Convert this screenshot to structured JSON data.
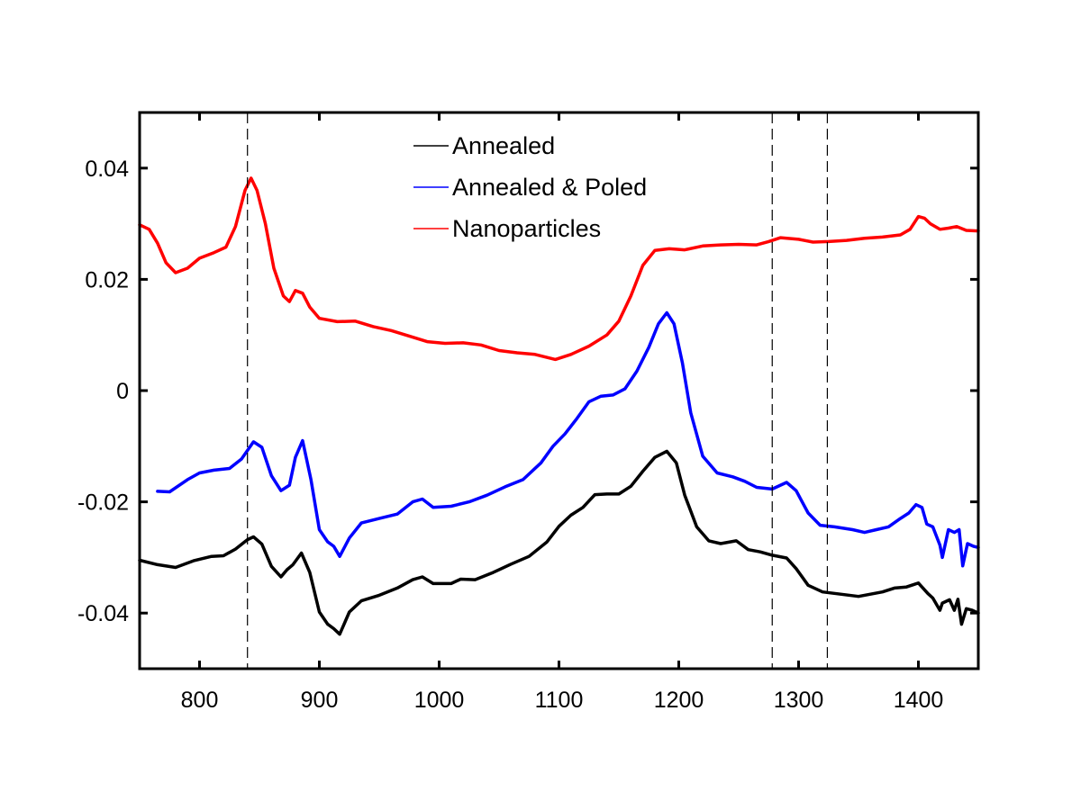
{
  "chart_data": {
    "type": "line",
    "title": "",
    "xlabel": "",
    "ylabel": "",
    "xlim": [
      750,
      1450
    ],
    "ylim": [
      -0.05,
      0.05
    ],
    "x_ticks": [
      800,
      900,
      1000,
      1100,
      1200,
      1300,
      1400
    ],
    "x_tick_labels": [
      "800",
      "900",
      "1000",
      "1100",
      "1200",
      "1300",
      "1400"
    ],
    "y_ticks": [
      0.04,
      0.02,
      0,
      -0.02,
      -0.04
    ],
    "y_tick_labels": [
      "0.04",
      "0.02",
      "0",
      "-0.02",
      "-0.04"
    ],
    "grid": false,
    "legend_position": "top-center",
    "vlines": [
      840,
      1278,
      1324
    ],
    "series": [
      {
        "name": "Annealed",
        "color": "#000000",
        "points": [
          [
            750,
            -0.0305
          ],
          [
            765,
            -0.0313
          ],
          [
            780,
            -0.0318
          ],
          [
            795,
            -0.0306
          ],
          [
            810,
            -0.0298
          ],
          [
            820,
            -0.0297
          ],
          [
            830,
            -0.0285
          ],
          [
            840,
            -0.0268
          ],
          [
            845,
            -0.0263
          ],
          [
            852,
            -0.0276
          ],
          [
            860,
            -0.0316
          ],
          [
            868,
            -0.0335
          ],
          [
            873,
            -0.0322
          ],
          [
            878,
            -0.0313
          ],
          [
            885,
            -0.0292
          ],
          [
            892,
            -0.0327
          ],
          [
            900,
            -0.0398
          ],
          [
            907,
            -0.042
          ],
          [
            912,
            -0.0428
          ],
          [
            917,
            -0.0438
          ],
          [
            925,
            -0.0398
          ],
          [
            935,
            -0.0378
          ],
          [
            950,
            -0.0368
          ],
          [
            965,
            -0.0355
          ],
          [
            978,
            -0.034
          ],
          [
            986,
            -0.0335
          ],
          [
            995,
            -0.0347
          ],
          [
            1010,
            -0.0347
          ],
          [
            1018,
            -0.0339
          ],
          [
            1030,
            -0.034
          ],
          [
            1045,
            -0.0327
          ],
          [
            1060,
            -0.0312
          ],
          [
            1075,
            -0.0298
          ],
          [
            1090,
            -0.0272
          ],
          [
            1100,
            -0.0244
          ],
          [
            1110,
            -0.0224
          ],
          [
            1120,
            -0.021
          ],
          [
            1130,
            -0.0187
          ],
          [
            1140,
            -0.0186
          ],
          [
            1150,
            -0.0186
          ],
          [
            1160,
            -0.0172
          ],
          [
            1170,
            -0.0145
          ],
          [
            1180,
            -0.012
          ],
          [
            1190,
            -0.0109
          ],
          [
            1198,
            -0.013
          ],
          [
            1205,
            -0.0188
          ],
          [
            1215,
            -0.0245
          ],
          [
            1225,
            -0.027
          ],
          [
            1235,
            -0.0275
          ],
          [
            1248,
            -0.027
          ],
          [
            1258,
            -0.0286
          ],
          [
            1268,
            -0.029
          ],
          [
            1278,
            -0.0296
          ],
          [
            1290,
            -0.0301
          ],
          [
            1298,
            -0.032
          ],
          [
            1308,
            -0.035
          ],
          [
            1320,
            -0.0362
          ],
          [
            1335,
            -0.0366
          ],
          [
            1350,
            -0.037
          ],
          [
            1360,
            -0.0366
          ],
          [
            1370,
            -0.0362
          ],
          [
            1380,
            -0.0355
          ],
          [
            1390,
            -0.0353
          ],
          [
            1400,
            -0.0346
          ],
          [
            1408,
            -0.0365
          ],
          [
            1412,
            -0.0373
          ],
          [
            1418,
            -0.0395
          ],
          [
            1420,
            -0.0382
          ],
          [
            1426,
            -0.0376
          ],
          [
            1430,
            -0.0395
          ],
          [
            1433,
            -0.0375
          ],
          [
            1436,
            -0.042
          ],
          [
            1440,
            -0.0392
          ],
          [
            1445,
            -0.0395
          ],
          [
            1450,
            -0.04
          ]
        ]
      },
      {
        "name": "Annealed & Poled",
        "color": "#0000ff",
        "points": [
          [
            765,
            -0.0181
          ],
          [
            775,
            -0.0182
          ],
          [
            790,
            -0.016
          ],
          [
            800,
            -0.0148
          ],
          [
            812,
            -0.0143
          ],
          [
            825,
            -0.014
          ],
          [
            835,
            -0.0123
          ],
          [
            845,
            -0.0092
          ],
          [
            852,
            -0.0102
          ],
          [
            860,
            -0.0153
          ],
          [
            868,
            -0.018
          ],
          [
            875,
            -0.017
          ],
          [
            880,
            -0.012
          ],
          [
            886,
            -0.009
          ],
          [
            893,
            -0.016
          ],
          [
            900,
            -0.025
          ],
          [
            907,
            -0.0272
          ],
          [
            912,
            -0.028
          ],
          [
            917,
            -0.0298
          ],
          [
            925,
            -0.0265
          ],
          [
            935,
            -0.0238
          ],
          [
            950,
            -0.023
          ],
          [
            965,
            -0.0222
          ],
          [
            978,
            -0.02
          ],
          [
            986,
            -0.0195
          ],
          [
            995,
            -0.021
          ],
          [
            1010,
            -0.0208
          ],
          [
            1025,
            -0.02
          ],
          [
            1040,
            -0.0188
          ],
          [
            1055,
            -0.0173
          ],
          [
            1070,
            -0.016
          ],
          [
            1085,
            -0.013
          ],
          [
            1095,
            -0.01
          ],
          [
            1105,
            -0.0078
          ],
          [
            1115,
            -0.005
          ],
          [
            1125,
            -0.002
          ],
          [
            1135,
            -0.001
          ],
          [
            1145,
            -0.0008
          ],
          [
            1155,
            0.0003
          ],
          [
            1165,
            0.0035
          ],
          [
            1175,
            0.0078
          ],
          [
            1183,
            0.012
          ],
          [
            1190,
            0.014
          ],
          [
            1196,
            0.012
          ],
          [
            1203,
            0.005
          ],
          [
            1210,
            -0.004
          ],
          [
            1220,
            -0.0118
          ],
          [
            1232,
            -0.0148
          ],
          [
            1245,
            -0.0155
          ],
          [
            1255,
            -0.0163
          ],
          [
            1265,
            -0.0174
          ],
          [
            1278,
            -0.0177
          ],
          [
            1290,
            -0.0165
          ],
          [
            1298,
            -0.018
          ],
          [
            1308,
            -0.022
          ],
          [
            1318,
            -0.0242
          ],
          [
            1330,
            -0.0245
          ],
          [
            1345,
            -0.025
          ],
          [
            1355,
            -0.0255
          ],
          [
            1365,
            -0.025
          ],
          [
            1375,
            -0.0245
          ],
          [
            1385,
            -0.023
          ],
          [
            1392,
            -0.022
          ],
          [
            1398,
            -0.0205
          ],
          [
            1403,
            -0.021
          ],
          [
            1407,
            -0.024
          ],
          [
            1412,
            -0.0245
          ],
          [
            1418,
            -0.0278
          ],
          [
            1420,
            -0.03
          ],
          [
            1425,
            -0.025
          ],
          [
            1430,
            -0.0255
          ],
          [
            1434,
            -0.025
          ],
          [
            1437,
            -0.0315
          ],
          [
            1441,
            -0.0275
          ],
          [
            1446,
            -0.028
          ],
          [
            1450,
            -0.0282
          ]
        ]
      },
      {
        "name": "Nanoparticles",
        "color": "#ff0000",
        "points": [
          [
            750,
            0.0298
          ],
          [
            758,
            0.029
          ],
          [
            765,
            0.0265
          ],
          [
            772,
            0.023
          ],
          [
            780,
            0.0212
          ],
          [
            790,
            0.022
          ],
          [
            800,
            0.0238
          ],
          [
            812,
            0.0248
          ],
          [
            822,
            0.0258
          ],
          [
            830,
            0.0295
          ],
          [
            838,
            0.036
          ],
          [
            843,
            0.0382
          ],
          [
            848,
            0.036
          ],
          [
            855,
            0.03
          ],
          [
            862,
            0.022
          ],
          [
            870,
            0.017
          ],
          [
            875,
            0.016
          ],
          [
            880,
            0.018
          ],
          [
            886,
            0.0175
          ],
          [
            892,
            0.015
          ],
          [
            900,
            0.013
          ],
          [
            915,
            0.0124
          ],
          [
            930,
            0.0125
          ],
          [
            945,
            0.0115
          ],
          [
            960,
            0.0108
          ],
          [
            975,
            0.0098
          ],
          [
            990,
            0.0088
          ],
          [
            1005,
            0.0085
          ],
          [
            1020,
            0.0086
          ],
          [
            1035,
            0.0082
          ],
          [
            1050,
            0.0072
          ],
          [
            1065,
            0.0068
          ],
          [
            1080,
            0.0065
          ],
          [
            1097,
            0.0056
          ],
          [
            1110,
            0.0065
          ],
          [
            1125,
            0.008
          ],
          [
            1140,
            0.01
          ],
          [
            1150,
            0.0125
          ],
          [
            1160,
            0.017
          ],
          [
            1170,
            0.0225
          ],
          [
            1180,
            0.0252
          ],
          [
            1192,
            0.0255
          ],
          [
            1205,
            0.0253
          ],
          [
            1220,
            0.026
          ],
          [
            1235,
            0.0262
          ],
          [
            1250,
            0.0263
          ],
          [
            1265,
            0.0262
          ],
          [
            1275,
            0.0268
          ],
          [
            1285,
            0.0275
          ],
          [
            1300,
            0.0272
          ],
          [
            1312,
            0.0267
          ],
          [
            1325,
            0.0268
          ],
          [
            1340,
            0.027
          ],
          [
            1355,
            0.0274
          ],
          [
            1370,
            0.0276
          ],
          [
            1385,
            0.028
          ],
          [
            1393,
            0.029
          ],
          [
            1400,
            0.0313
          ],
          [
            1405,
            0.031
          ],
          [
            1410,
            0.03
          ],
          [
            1418,
            0.029
          ],
          [
            1425,
            0.0292
          ],
          [
            1432,
            0.0295
          ],
          [
            1440,
            0.0288
          ],
          [
            1450,
            0.0287
          ]
        ]
      }
    ]
  }
}
